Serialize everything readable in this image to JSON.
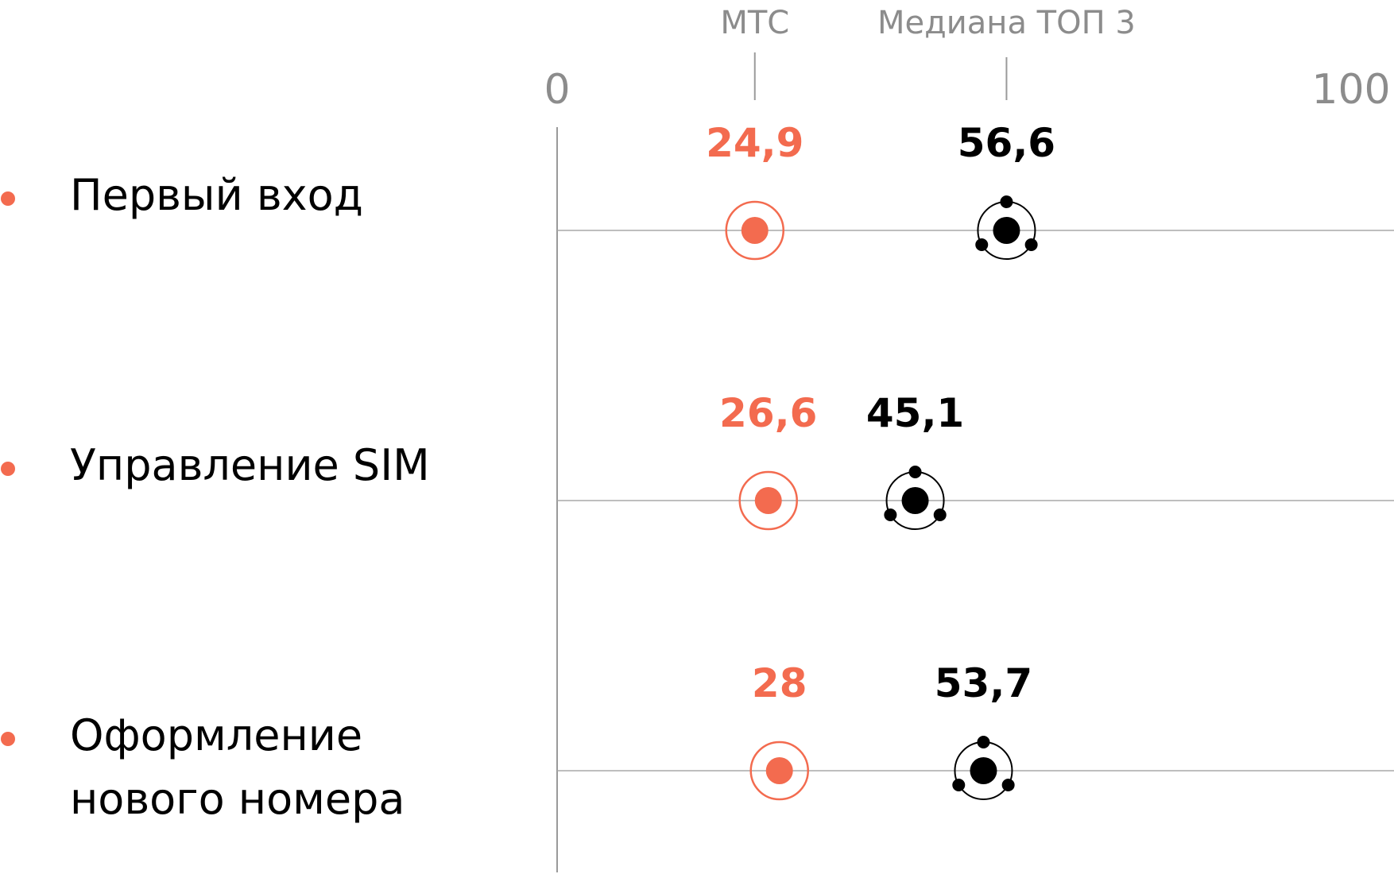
{
  "chart_data": {
    "type": "scatter",
    "title": "",
    "xlabel": "",
    "ylabel": "",
    "xlim": [
      0,
      100
    ],
    "x_ticks": [
      "0",
      "100"
    ],
    "grid": false,
    "legend": [
      {
        "label": "МТС",
        "series": "mts"
      },
      {
        "label": "Медиана ТОП 3",
        "series": "median"
      }
    ],
    "categories": [
      {
        "lines": [
          "Первый вход"
        ]
      },
      {
        "lines": [
          "Управление SIM"
        ]
      },
      {
        "lines": [
          "Оформление",
          "нового номера"
        ]
      }
    ],
    "series": [
      {
        "key": "mts",
        "values": [
          24.9,
          26.6,
          28
        ],
        "labels": [
          "24,9",
          "26,6",
          "28"
        ]
      },
      {
        "key": "median",
        "values": [
          56.6,
          45.1,
          53.7
        ],
        "labels": [
          "56,6",
          "45,1",
          "53,7"
        ]
      }
    ]
  },
  "colors": {
    "mts": "#F36B4F",
    "median": "#000000",
    "text": "#000000",
    "axis_text": "#8C8C8C",
    "axis_line": "#9A9A9A",
    "gridline": "#A8A8A8",
    "bullet": "#F36B4F"
  }
}
